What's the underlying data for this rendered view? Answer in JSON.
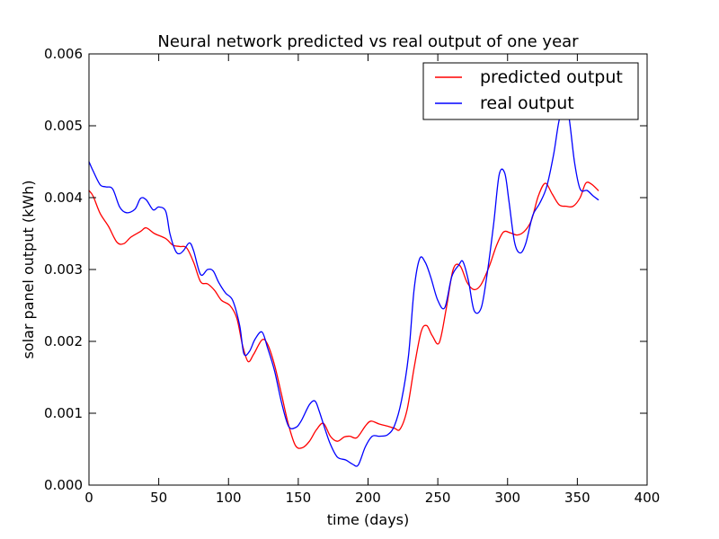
{
  "chart_data": {
    "type": "line",
    "title": "Neural network predicted vs real output of one year",
    "xlabel": "time (days)",
    "ylabel": "solar panel output (kWh)",
    "xlim": [
      0,
      400
    ],
    "ylim": [
      0,
      0.006
    ],
    "xticks": [
      0,
      50,
      100,
      150,
      200,
      250,
      300,
      350,
      400
    ],
    "yticks": [
      0.0,
      0.001,
      0.002,
      0.003,
      0.004,
      0.005,
      0.006
    ],
    "xtick_labels": [
      "0",
      "50",
      "100",
      "150",
      "200",
      "250",
      "300",
      "350",
      "400"
    ],
    "ytick_labels": [
      "0.000",
      "0.001",
      "0.002",
      "0.003",
      "0.004",
      "0.005",
      "0.006"
    ],
    "grid": false,
    "legend_position": "top-right",
    "series": [
      {
        "name": "predicted output",
        "color": "#ff0000",
        "x": [
          0,
          3,
          8,
          14,
          20,
          25,
          30,
          37,
          41,
          47,
          55,
          60,
          65,
          70,
          75,
          80,
          85,
          90,
          95,
          101,
          106,
          110,
          114,
          118,
          124,
          128,
          133,
          138,
          143,
          148,
          153,
          158,
          163,
          168,
          173,
          178,
          183,
          187,
          192,
          198,
          202,
          208,
          214,
          219,
          223,
          228,
          233,
          238,
          242,
          246,
          251,
          256,
          261,
          266,
          271,
          276,
          281,
          287,
          292,
          297,
          302,
          307,
          312,
          317,
          322,
          327,
          332,
          337,
          342,
          347,
          352,
          356,
          360,
          365
        ],
        "y": [
          0.0041,
          0.00402,
          0.00378,
          0.0036,
          0.00338,
          0.00336,
          0.00345,
          0.00353,
          0.00358,
          0.0035,
          0.00343,
          0.00334,
          0.00332,
          0.0033,
          0.0031,
          0.00283,
          0.0028,
          0.00271,
          0.00257,
          0.0025,
          0.00232,
          0.00195,
          0.00172,
          0.00182,
          0.00202,
          0.00196,
          0.00167,
          0.00126,
          0.00084,
          0.00055,
          0.00052,
          0.00061,
          0.00077,
          0.00086,
          0.00068,
          0.00061,
          0.00067,
          0.00068,
          0.00066,
          0.00082,
          0.00089,
          0.00085,
          0.00082,
          0.00079,
          0.00078,
          0.00105,
          0.00163,
          0.00213,
          0.00222,
          0.00208,
          0.00198,
          0.00245,
          0.003,
          0.00305,
          0.00282,
          0.00272,
          0.00279,
          0.00305,
          0.00333,
          0.00352,
          0.00351,
          0.00348,
          0.00353,
          0.00368,
          0.00402,
          0.0042,
          0.00405,
          0.0039,
          0.00388,
          0.00388,
          0.004,
          0.0042,
          0.00419,
          0.0041
        ]
      },
      {
        "name": "real output",
        "color": "#0000ff",
        "x": [
          0,
          3,
          8,
          12,
          17,
          22,
          27,
          33,
          37,
          41,
          46,
          50,
          55,
          58,
          62,
          65,
          68,
          72,
          75,
          80,
          85,
          89,
          93,
          98,
          103,
          108,
          111,
          115,
          119,
          124,
          128,
          133,
          138,
          143,
          148,
          152,
          158,
          162,
          165,
          169,
          173,
          178,
          184,
          189,
          193,
          198,
          203,
          208,
          214,
          219,
          224,
          229,
          233,
          237,
          241,
          245,
          250,
          255,
          260,
          265,
          268,
          272,
          276,
          281,
          285,
          290,
          294,
          298,
          301,
          305,
          309,
          313,
          318,
          323,
          328,
          333,
          337,
          341,
          344,
          348,
          352,
          357,
          361,
          365
        ],
        "y": [
          0.0045,
          0.00437,
          0.00418,
          0.00415,
          0.00412,
          0.00387,
          0.00379,
          0.00384,
          0.00399,
          0.00397,
          0.00383,
          0.00387,
          0.00381,
          0.0035,
          0.00326,
          0.00322,
          0.00327,
          0.00337,
          0.00326,
          0.00293,
          0.003,
          0.00298,
          0.00282,
          0.00267,
          0.00257,
          0.00222,
          0.00183,
          0.00186,
          0.00203,
          0.00213,
          0.00191,
          0.00159,
          0.00115,
          0.00082,
          0.0008,
          0.00089,
          0.00112,
          0.00117,
          0.00103,
          0.00079,
          0.00057,
          0.00039,
          0.00035,
          0.00029,
          0.00028,
          0.00053,
          0.00068,
          0.00068,
          0.0007,
          0.00083,
          0.00118,
          0.0018,
          0.00272,
          0.00315,
          0.0031,
          0.00289,
          0.00257,
          0.00247,
          0.0029,
          0.00306,
          0.00311,
          0.00284,
          0.00243,
          0.00246,
          0.00289,
          0.00363,
          0.00432,
          0.00434,
          0.00395,
          0.00338,
          0.00323,
          0.00336,
          0.00375,
          0.00392,
          0.00415,
          0.0046,
          0.00508,
          0.00527,
          0.00512,
          0.00449,
          0.00412,
          0.0041,
          0.00403,
          0.00397
        ]
      }
    ]
  }
}
